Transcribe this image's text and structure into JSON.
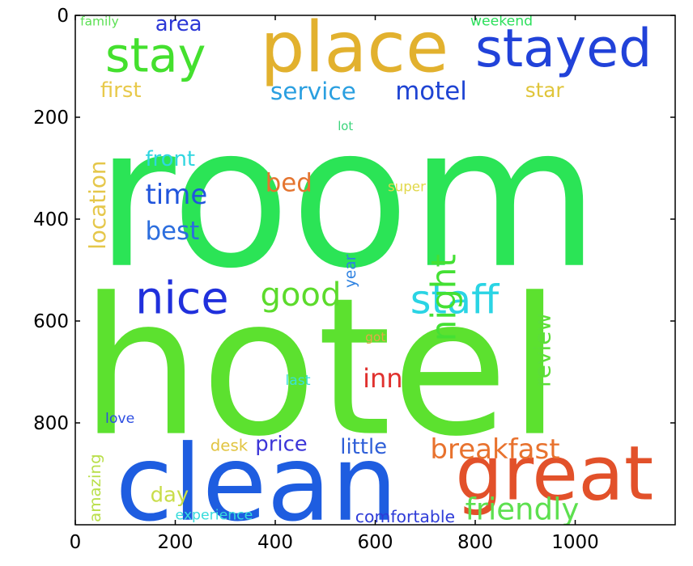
{
  "chart_data": {
    "type": "image",
    "title": "",
    "xlabel": "",
    "ylabel": "",
    "xlim": [
      0,
      1200
    ],
    "ylim": [
      1000,
      0
    ],
    "x_ticks": [
      0,
      200,
      400,
      600,
      800,
      1000
    ],
    "y_ticks": [
      0,
      200,
      400,
      600,
      800
    ],
    "grid": false,
    "words": [
      {
        "text": "room",
        "x": 40,
        "y": 490,
        "size": 390,
        "color": "#2be456",
        "rotate": 0
      },
      {
        "text": "hotel",
        "x": 10,
        "y": 820,
        "size": 380,
        "color": "#5ce12f",
        "rotate": 0
      },
      {
        "text": "clean",
        "x": 80,
        "y": 990,
        "size": 210,
        "color": "#1e5de0",
        "rotate": 0
      },
      {
        "text": "great",
        "x": 760,
        "y": 950,
        "size": 150,
        "color": "#e2512a",
        "rotate": 0
      },
      {
        "text": "place",
        "x": 370,
        "y": 110,
        "size": 140,
        "color": "#e2b12e",
        "rotate": 0
      },
      {
        "text": "stayed",
        "x": 800,
        "y": 100,
        "size": 105,
        "color": "#2142d9",
        "rotate": 0
      },
      {
        "text": "stay",
        "x": 60,
        "y": 110,
        "size": 95,
        "color": "#44e02e",
        "rotate": 0
      },
      {
        "text": "nice",
        "x": 120,
        "y": 585,
        "size": 90,
        "color": "#2030dc",
        "rotate": 0
      },
      {
        "text": "staff",
        "x": 670,
        "y": 585,
        "size": 80,
        "color": "#2ad4e4",
        "rotate": 0
      },
      {
        "text": "good",
        "x": 370,
        "y": 570,
        "size": 65,
        "color": "#5cdb2c",
        "rotate": 0
      },
      {
        "text": "night",
        "x": 760,
        "y": 640,
        "size": 68,
        "color": "#44e034",
        "rotate": -90
      },
      {
        "text": "service",
        "x": 390,
        "y": 165,
        "size": 48,
        "color": "#2a9fe0",
        "rotate": 0
      },
      {
        "text": "motel",
        "x": 640,
        "y": 165,
        "size": 50,
        "color": "#1f44d3",
        "rotate": 0
      },
      {
        "text": "first",
        "x": 50,
        "y": 160,
        "size": 42,
        "color": "#e8c94a",
        "rotate": 0
      },
      {
        "text": "star",
        "x": 900,
        "y": 160,
        "size": 40,
        "color": "#e0c53a",
        "rotate": 0
      },
      {
        "text": "area",
        "x": 160,
        "y": 30,
        "size": 42,
        "color": "#2c37d6",
        "rotate": 0
      },
      {
        "text": "family",
        "x": 10,
        "y": 20,
        "size": 25,
        "color": "#5ce054",
        "rotate": 0
      },
      {
        "text": "weekend",
        "x": 790,
        "y": 20,
        "size": 28,
        "color": "#2ee05d",
        "rotate": 0
      },
      {
        "text": "lot",
        "x": 525,
        "y": 225,
        "size": 24,
        "color": "#39d47a",
        "rotate": 0
      },
      {
        "text": "location",
        "x": 60,
        "y": 460,
        "size": 45,
        "color": "#e5c74a",
        "rotate": -90
      },
      {
        "text": "front",
        "x": 140,
        "y": 295,
        "size": 42,
        "color": "#2fd6e0",
        "rotate": 0
      },
      {
        "text": "bed",
        "x": 380,
        "y": 345,
        "size": 50,
        "color": "#e4742f",
        "rotate": 0
      },
      {
        "text": "super",
        "x": 625,
        "y": 345,
        "size": 27,
        "color": "#e1d84a",
        "rotate": 0
      },
      {
        "text": "time",
        "x": 140,
        "y": 370,
        "size": 55,
        "color": "#2155dc",
        "rotate": 0
      },
      {
        "text": "best",
        "x": 140,
        "y": 440,
        "size": 50,
        "color": "#2c6ede",
        "rotate": 0
      },
      {
        "text": "year",
        "x": 560,
        "y": 535,
        "size": 30,
        "color": "#2e82e1",
        "rotate": -90
      },
      {
        "text": "review",
        "x": 950,
        "y": 730,
        "size": 45,
        "color": "#5cdd37",
        "rotate": -90
      },
      {
        "text": "got",
        "x": 580,
        "y": 640,
        "size": 25,
        "color": "#e4a848",
        "rotate": 0
      },
      {
        "text": "inn",
        "x": 575,
        "y": 730,
        "size": 52,
        "color": "#e0312e",
        "rotate": 0
      },
      {
        "text": "last",
        "x": 420,
        "y": 725,
        "size": 28,
        "color": "#3ae0d8",
        "rotate": 0
      },
      {
        "text": "love",
        "x": 60,
        "y": 800,
        "size": 28,
        "color": "#2c4de2",
        "rotate": 0
      },
      {
        "text": "desk",
        "x": 270,
        "y": 855,
        "size": 32,
        "color": "#e1c440",
        "rotate": 0
      },
      {
        "text": "price",
        "x": 360,
        "y": 855,
        "size": 42,
        "color": "#3c35d8",
        "rotate": 0
      },
      {
        "text": "little",
        "x": 530,
        "y": 860,
        "size": 42,
        "color": "#2f5fd8",
        "rotate": 0
      },
      {
        "text": "breakfast",
        "x": 710,
        "y": 870,
        "size": 55,
        "color": "#e8722e",
        "rotate": 0
      },
      {
        "text": "amazing",
        "x": 50,
        "y": 995,
        "size": 32,
        "color": "#b9df4a",
        "rotate": -90
      },
      {
        "text": "day",
        "x": 150,
        "y": 955,
        "size": 42,
        "color": "#c9dd49",
        "rotate": 0
      },
      {
        "text": "friendly",
        "x": 780,
        "y": 990,
        "size": 60,
        "color": "#5de04f",
        "rotate": 0
      },
      {
        "text": "experience",
        "x": 200,
        "y": 990,
        "size": 28,
        "color": "#38dcdc",
        "rotate": 0
      },
      {
        "text": "comfortable",
        "x": 560,
        "y": 995,
        "size": 33,
        "color": "#2f3cd8",
        "rotate": 0
      }
    ]
  }
}
